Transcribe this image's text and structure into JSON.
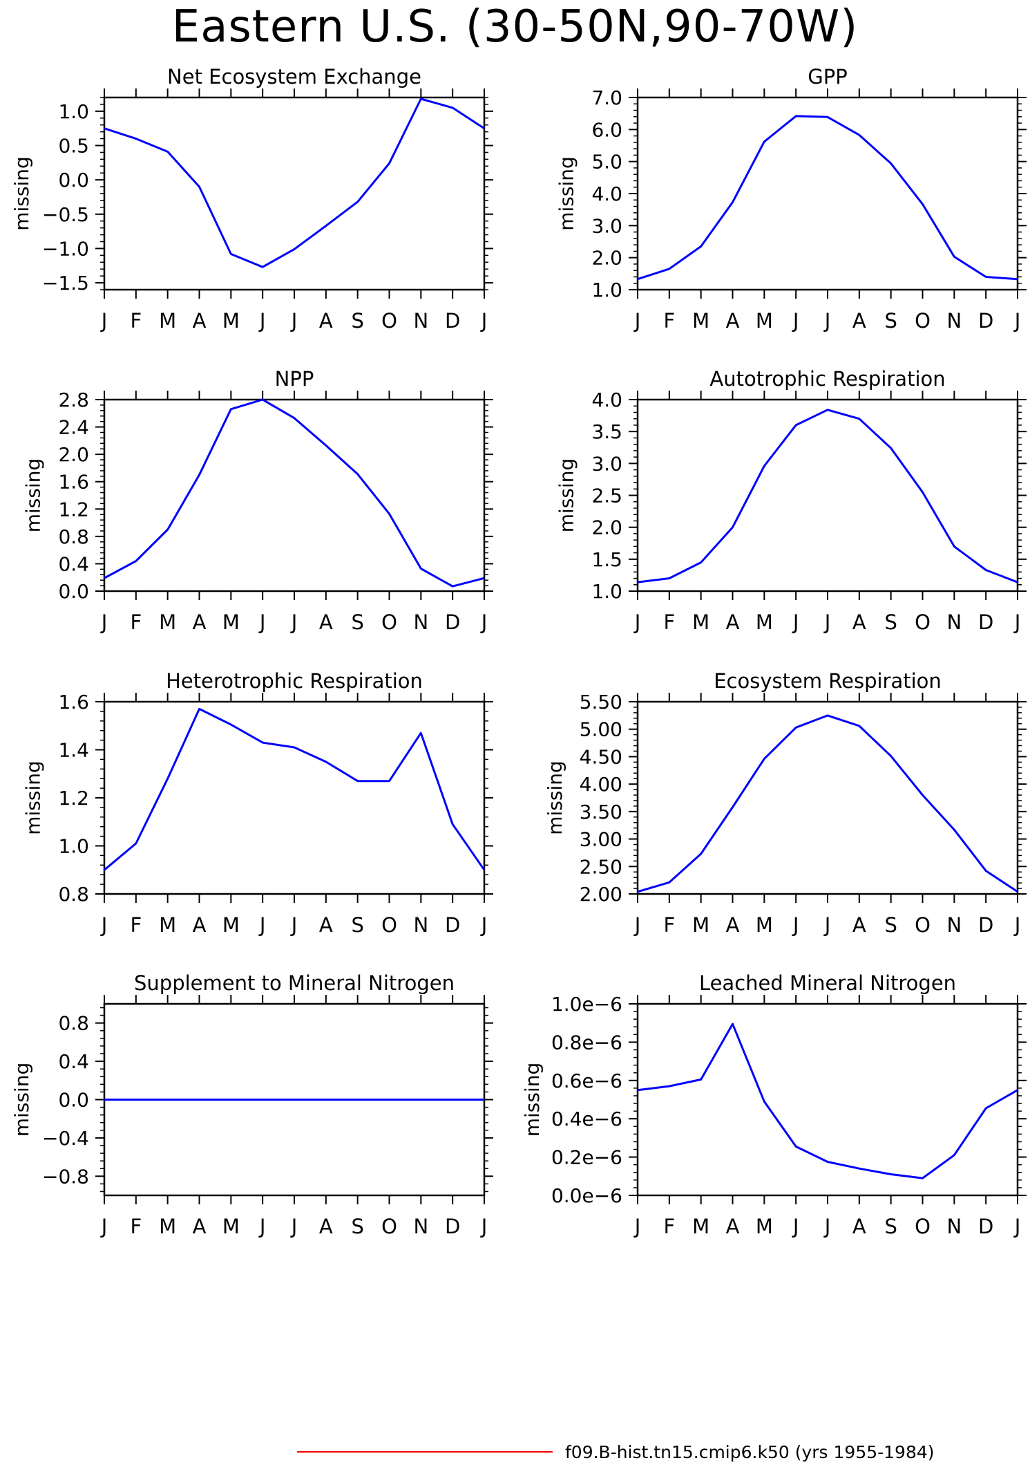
{
  "title": "Eastern U.S. (30-50N,90-70W)",
  "legend": {
    "label": "f09.B-hist.tn15.cmip6.k50 (yrs 1955-1984)",
    "color": "#ff0000"
  },
  "series_color": "#0000ff",
  "chart_data": [
    {
      "type": "line",
      "title": "Net Ecosystem Exchange",
      "ylabel": "missing",
      "categories": [
        "J",
        "F",
        "M",
        "A",
        "M",
        "J",
        "J",
        "A",
        "S",
        "O",
        "N",
        "D",
        "J"
      ],
      "values": [
        0.75,
        0.6,
        0.41,
        -0.1,
        -1.08,
        -1.27,
        -1.01,
        -0.67,
        -0.32,
        0.24,
        1.18,
        1.05,
        0.75
      ],
      "ylim": [
        -1.6,
        1.2
      ],
      "yticks": [
        -1.5,
        -1.0,
        -0.5,
        0.0,
        0.5,
        1.0
      ],
      "yticklabels": [
        "−1.5",
        "−1.0",
        "−0.5",
        "0.0",
        "0.5",
        "1.0"
      ]
    },
    {
      "type": "line",
      "title": "GPP",
      "ylabel": "missing",
      "categories": [
        "J",
        "F",
        "M",
        "A",
        "M",
        "J",
        "J",
        "A",
        "S",
        "O",
        "N",
        "D",
        "J"
      ],
      "values": [
        1.33,
        1.65,
        2.35,
        3.73,
        5.62,
        6.42,
        6.39,
        5.83,
        4.94,
        3.67,
        2.03,
        1.4,
        1.33
      ],
      "ylim": [
        1.0,
        7.0
      ],
      "yticks": [
        1,
        2,
        3,
        4,
        5,
        6,
        7
      ],
      "yticklabels": [
        "1.0",
        "2.0",
        "3.0",
        "4.0",
        "5.0",
        "6.0",
        "7.0"
      ]
    },
    {
      "type": "line",
      "title": "NPP",
      "ylabel": "missing",
      "categories": [
        "J",
        "F",
        "M",
        "A",
        "M",
        "J",
        "J",
        "A",
        "S",
        "O",
        "N",
        "D",
        "J"
      ],
      "values": [
        0.19,
        0.44,
        0.9,
        1.7,
        2.66,
        2.8,
        2.53,
        2.13,
        1.71,
        1.13,
        0.33,
        0.07,
        0.19
      ],
      "ylim": [
        0.0,
        2.8
      ],
      "yticks": [
        0,
        0.4,
        0.8,
        1.2,
        1.6,
        2.0,
        2.4,
        2.8
      ],
      "yticklabels": [
        "0.0",
        "0.4",
        "0.8",
        "1.2",
        "1.6",
        "2.0",
        "2.4",
        "2.8"
      ]
    },
    {
      "type": "line",
      "title": "Autotrophic Respiration",
      "ylabel": "missing",
      "categories": [
        "J",
        "F",
        "M",
        "A",
        "M",
        "J",
        "J",
        "A",
        "S",
        "O",
        "N",
        "D",
        "J"
      ],
      "values": [
        1.14,
        1.2,
        1.45,
        2.0,
        2.96,
        3.6,
        3.84,
        3.7,
        3.24,
        2.55,
        1.7,
        1.33,
        1.14
      ],
      "ylim": [
        1.0,
        4.0
      ],
      "yticks": [
        1.0,
        1.5,
        2.0,
        2.5,
        3.0,
        3.5,
        4.0
      ],
      "yticklabels": [
        "1.0",
        "1.5",
        "2.0",
        "2.5",
        "3.0",
        "3.5",
        "4.0"
      ]
    },
    {
      "type": "line",
      "title": "Heterotrophic Respiration",
      "ylabel": "missing",
      "categories": [
        "J",
        "F",
        "M",
        "A",
        "M",
        "J",
        "J",
        "A",
        "S",
        "O",
        "N",
        "D",
        "J"
      ],
      "values": [
        0.9,
        1.01,
        1.28,
        1.57,
        1.505,
        1.43,
        1.41,
        1.35,
        1.27,
        1.27,
        1.47,
        1.09,
        0.9
      ],
      "ylim": [
        0.8,
        1.6
      ],
      "yticks": [
        0.8,
        1.0,
        1.2,
        1.4,
        1.6
      ],
      "yticklabels": [
        "0.8",
        "1.0",
        "1.2",
        "1.4",
        "1.6"
      ]
    },
    {
      "type": "line",
      "title": "Ecosystem Respiration",
      "ylabel": "missing",
      "categories": [
        "J",
        "F",
        "M",
        "A",
        "M",
        "J",
        "J",
        "A",
        "S",
        "O",
        "N",
        "D",
        "J"
      ],
      "values": [
        2.04,
        2.21,
        2.73,
        3.58,
        4.46,
        5.03,
        5.25,
        5.06,
        4.51,
        3.8,
        3.17,
        2.42,
        2.04
      ],
      "ylim": [
        2.0,
        5.5
      ],
      "yticks": [
        2.0,
        2.5,
        3.0,
        3.5,
        4.0,
        4.5,
        5.0,
        5.5
      ],
      "yticklabels": [
        "2.00",
        "2.50",
        "3.00",
        "3.50",
        "4.00",
        "4.50",
        "5.00",
        "5.50"
      ]
    },
    {
      "type": "line",
      "title": "Supplement to Mineral Nitrogen",
      "ylabel": "missing",
      "categories": [
        "J",
        "F",
        "M",
        "A",
        "M",
        "J",
        "J",
        "A",
        "S",
        "O",
        "N",
        "D",
        "J"
      ],
      "values": [
        0,
        0,
        0,
        0,
        0,
        0,
        0,
        0,
        0,
        0,
        0,
        0,
        0
      ],
      "ylim": [
        -1.0,
        1.0
      ],
      "yticks": [
        -0.8,
        -0.4,
        0.0,
        0.4,
        0.8
      ],
      "yticklabels": [
        "−0.8",
        "−0.4",
        "0.0",
        "0.4",
        "0.8"
      ]
    },
    {
      "type": "line",
      "title": "Leached Mineral Nitrogen",
      "ylabel": "missing",
      "categories": [
        "J",
        "F",
        "M",
        "A",
        "M",
        "J",
        "J",
        "A",
        "S",
        "O",
        "N",
        "D",
        "J"
      ],
      "values": [
        5.5e-07,
        5.7e-07,
        6.05e-07,
        8.95e-07,
        4.9e-07,
        2.55e-07,
        1.75e-07,
        1.4e-07,
        1.1e-07,
        9e-08,
        2.1e-07,
        4.55e-07,
        5.5e-07
      ],
      "ylim": [
        0.0,
        1e-06
      ],
      "yticks": [
        0.0,
        2e-07,
        4e-07,
        6e-07,
        8e-07,
        1e-06
      ],
      "yticklabels": [
        "0.0e−6",
        "0.2e−6",
        "0.4e−6",
        "0.6e−6",
        "0.8e−6",
        "1.0e−6"
      ]
    }
  ]
}
